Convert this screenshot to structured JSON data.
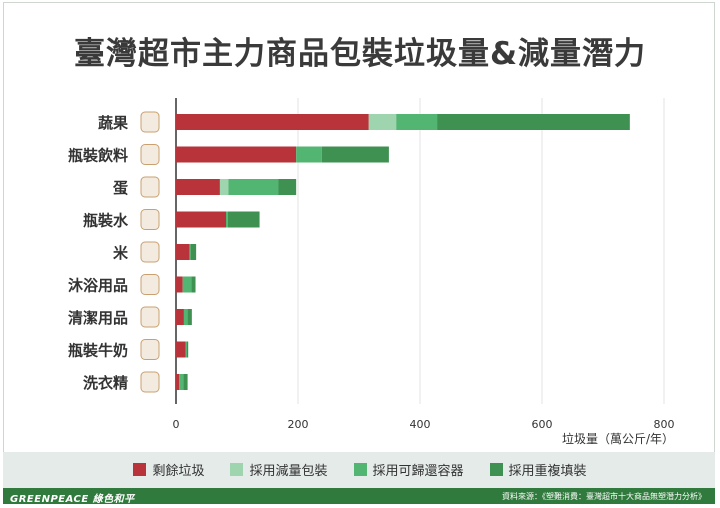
{
  "title": "臺灣超市主力商品包裝垃圾量&減量潛力",
  "chart_data": {
    "type": "bar",
    "orientation": "horizontal",
    "stacked": true,
    "categories": [
      "蔬果",
      "瓶裝飲料",
      "蛋",
      "瓶裝水",
      "米",
      "沐浴用品",
      "清潔用品",
      "瓶裝牛奶",
      "洗衣精"
    ],
    "series": [
      {
        "name": "剩餘垃圾",
        "color": "#b8333a",
        "values": [
          316,
          197,
          72,
          82,
          22,
          11,
          13,
          16,
          5
        ]
      },
      {
        "name": "採用減量包裝",
        "color": "#9fd5ae",
        "values": [
          45,
          0,
          14,
          0,
          0,
          0,
          0,
          0,
          0
        ]
      },
      {
        "name": "採用可歸還容器",
        "color": "#52b572",
        "values": [
          67,
          42,
          82,
          3,
          2,
          14,
          6,
          2,
          7
        ]
      },
      {
        "name": "採用重複填裝",
        "color": "#3f9152",
        "values": [
          316,
          110,
          29,
          52,
          9,
          7,
          7,
          2,
          7
        ]
      }
    ],
    "xlim": [
      0,
      800
    ],
    "xticks": [
      "0",
      "200",
      "400",
      "600",
      "800"
    ],
    "xlabel": "垃圾量（萬公斤/年）",
    "grid": true,
    "legend_position": "bottom"
  },
  "footer": {
    "brand": "GREENPEACE 綠色和平",
    "source": "資料來源：《塑難消費：臺灣超市十大商品無塑潛力分析》"
  }
}
